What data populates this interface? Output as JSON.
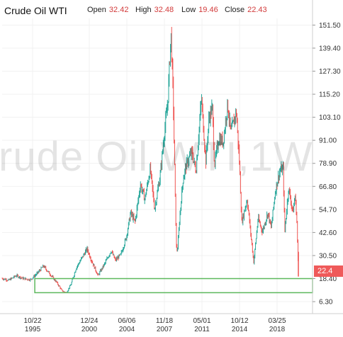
{
  "header": {
    "title": "Crude Oil WTI",
    "open_label": "Open",
    "open_value": "32.42",
    "high_label": "High",
    "high_value": "32.48",
    "low_label": "Low",
    "low_value": "19.46",
    "close_label": "Close",
    "close_value": "22.43"
  },
  "watermark": "rude Oil WTI,1W",
  "last_price_label": "22.4",
  "colors": {
    "up": "#26a69a",
    "down": "#ef5350",
    "box": "#5cb85c",
    "tag": "#ef5a5a"
  },
  "chart_data": {
    "type": "line",
    "title": "Crude Oil WTI",
    "y_ticks": [
      "151.50",
      "139.40",
      "127.30",
      "115.20",
      "103.10",
      "91.00",
      "78.90",
      "66.80",
      "54.70",
      "42.60",
      "30.50",
      "18.40",
      "6.30"
    ],
    "x_ticks": [
      {
        "top": "10/22",
        "bottom": "1995"
      },
      {
        "top": "12/24",
        "bottom": "2000"
      },
      {
        "top": "06/06",
        "bottom": "2004"
      },
      {
        "top": "11/18",
        "bottom": "2007"
      },
      {
        "top": "05/01",
        "bottom": "2011"
      },
      {
        "top": "10/12",
        "bottom": "2014"
      },
      {
        "top": "03/25",
        "bottom": "2018"
      }
    ],
    "ylim": [
      0,
      155
    ],
    "xlim": [
      1993.0,
      2021.5
    ],
    "grid": true,
    "series": [
      {
        "values": [
          [
            1993.0,
            18.5
          ],
          [
            1993.6,
            17.5
          ],
          [
            1994.3,
            20
          ],
          [
            1994.9,
            18.5
          ],
          [
            1995.6,
            17.8
          ],
          [
            1996.2,
            21
          ],
          [
            1996.8,
            25
          ],
          [
            1997.5,
            20
          ],
          [
            1998.0,
            16.5
          ],
          [
            1998.5,
            12
          ],
          [
            1998.9,
            11
          ],
          [
            1999.3,
            15
          ],
          [
            1999.8,
            24
          ],
          [
            2000.3,
            29
          ],
          [
            2000.8,
            34
          ],
          [
            2001.2,
            28
          ],
          [
            2001.8,
            20
          ],
          [
            2002.4,
            26
          ],
          [
            2003.0,
            33
          ],
          [
            2003.4,
            28
          ],
          [
            2003.9,
            31
          ],
          [
            2004.4,
            40
          ],
          [
            2004.8,
            53
          ],
          [
            2005.2,
            48
          ],
          [
            2005.7,
            68
          ],
          [
            2006.1,
            60
          ],
          [
            2006.6,
            76
          ],
          [
            2007.0,
            55
          ],
          [
            2007.5,
            72
          ],
          [
            2007.9,
            95
          ],
          [
            2008.2,
            110
          ],
          [
            2008.5,
            147
          ],
          [
            2008.7,
            115
          ],
          [
            2008.9,
            60
          ],
          [
            2009.0,
            35
          ],
          [
            2009.1,
            33
          ],
          [
            2009.3,
            50
          ],
          [
            2009.6,
            70
          ],
          [
            2009.9,
            78
          ],
          [
            2010.4,
            85
          ],
          [
            2010.8,
            75
          ],
          [
            2011.3,
            113
          ],
          [
            2011.7,
            80
          ],
          [
            2012.0,
            103
          ],
          [
            2012.3,
            108
          ],
          [
            2012.5,
            78
          ],
          [
            2012.9,
            92
          ],
          [
            2013.3,
            90
          ],
          [
            2013.7,
            110
          ],
          [
            2014.0,
            95
          ],
          [
            2014.5,
            106
          ],
          [
            2014.8,
            78
          ],
          [
            2015.0,
            48
          ],
          [
            2015.5,
            60
          ],
          [
            2015.9,
            38
          ],
          [
            2016.1,
            27
          ],
          [
            2016.5,
            50
          ],
          [
            2016.9,
            43
          ],
          [
            2017.4,
            53
          ],
          [
            2017.7,
            45
          ],
          [
            2018.1,
            65
          ],
          [
            2018.5,
            75
          ],
          [
            2018.8,
            76
          ],
          [
            2018.95,
            43
          ],
          [
            2019.3,
            66
          ],
          [
            2019.7,
            53
          ],
          [
            2019.9,
            62
          ],
          [
            2020.05,
            50
          ],
          [
            2020.2,
            22.43
          ]
        ]
      }
    ],
    "annotations": {
      "support_box": {
        "x_from": 1996.0,
        "x_to": 2021.5,
        "y_from": 11.0,
        "y_to": 18.4
      },
      "last_price": 22.43
    }
  }
}
